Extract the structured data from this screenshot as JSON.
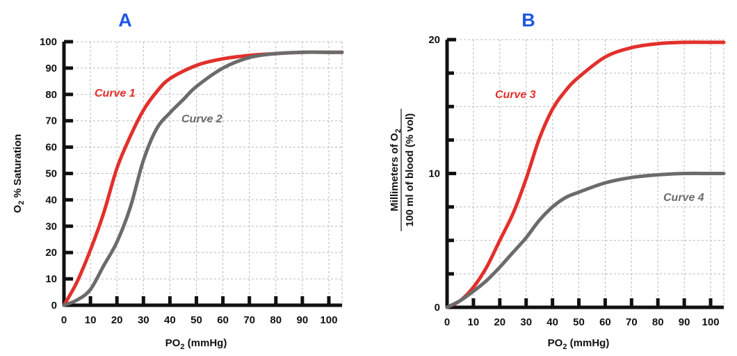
{
  "chart_data": [
    {
      "type": "line",
      "title": "A",
      "xlabel": "PO",
      "xlabel_sub": "2",
      "xlabel_suffix": " (mmHg)",
      "ylabel": "O",
      "ylabel_sub": "2",
      "ylabel_suffix": " % Saturation",
      "xlim": [
        0,
        105
      ],
      "ylim": [
        0,
        100
      ],
      "xticks": [
        "0",
        "10",
        "20",
        "30",
        "40",
        "50",
        "60",
        "70",
        "80",
        "90",
        "100"
      ],
      "yticks": [
        "0",
        "10",
        "20",
        "30",
        "40",
        "50",
        "60",
        "70",
        "80",
        "90",
        "100"
      ],
      "grid": true,
      "series": [
        {
          "name": "Curve 1",
          "color": "#e2302c",
          "x": [
            0,
            5,
            10,
            15,
            20,
            25,
            30,
            35,
            40,
            50,
            60,
            70,
            80,
            90,
            100,
            105
          ],
          "y": [
            0,
            9,
            21,
            35,
            52,
            64,
            74,
            81,
            86,
            91,
            93.5,
            94.8,
            95.5,
            96,
            96,
            96
          ]
        },
        {
          "name": "Curve 2",
          "color": "#6b6b6b",
          "x": [
            0,
            5,
            10,
            15,
            20,
            25,
            30,
            35,
            40,
            45,
            50,
            60,
            70,
            80,
            90,
            100,
            105
          ],
          "y": [
            0,
            2,
            6,
            15,
            24,
            37,
            55,
            67,
            73,
            78,
            83,
            90,
            94,
            95.5,
            96,
            96,
            96
          ]
        }
      ]
    },
    {
      "type": "line",
      "title": "B",
      "xlabel": "PO",
      "xlabel_sub": "2",
      "xlabel_suffix": " (mmHg)",
      "ylabel_numerator": "Millimeters of O",
      "ylabel_numerator_sub": "2",
      "ylabel_denominator": "100 ml of blood (% vol)",
      "xlim": [
        0,
        105
      ],
      "ylim": [
        0,
        20
      ],
      "xticks": [
        "0",
        "10",
        "20",
        "30",
        "40",
        "50",
        "60",
        "70",
        "80",
        "90",
        "100"
      ],
      "yticks": [
        "0",
        "10",
        "20"
      ],
      "grid": true,
      "series": [
        {
          "name": "Curve 3",
          "color": "#e2302c",
          "x": [
            0,
            5,
            10,
            15,
            20,
            25,
            30,
            35,
            40,
            45,
            50,
            60,
            70,
            80,
            90,
            100,
            105
          ],
          "y": [
            0,
            0.5,
            1.5,
            3,
            5,
            7,
            9.6,
            12.6,
            14.8,
            16.2,
            17.2,
            18.7,
            19.4,
            19.7,
            19.8,
            19.8,
            19.8
          ]
        },
        {
          "name": "Curve 4",
          "color": "#6b6b6b",
          "x": [
            0,
            5,
            10,
            15,
            20,
            25,
            30,
            35,
            40,
            45,
            50,
            60,
            70,
            80,
            90,
            100,
            105
          ],
          "y": [
            0,
            0.5,
            1.2,
            2,
            3,
            4.1,
            5.2,
            6.5,
            7.5,
            8.2,
            8.6,
            9.3,
            9.7,
            9.9,
            10,
            10,
            10
          ]
        }
      ]
    }
  ]
}
